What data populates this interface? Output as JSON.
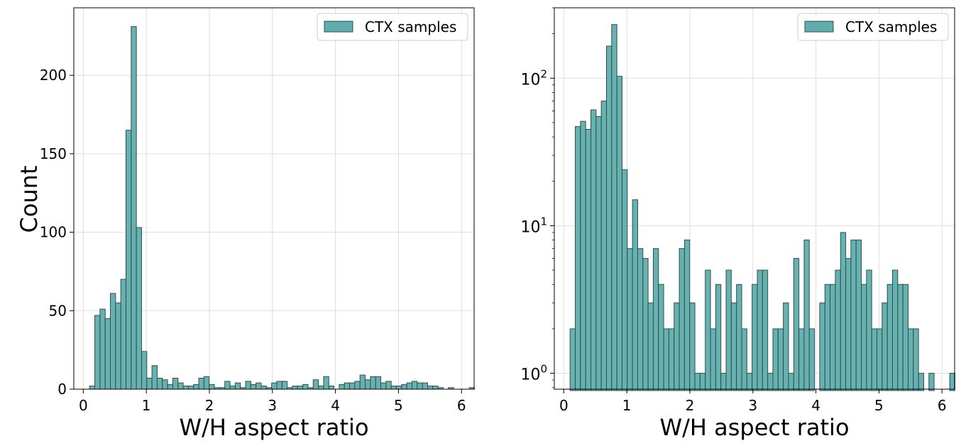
{
  "chart_data": [
    {
      "type": "bar",
      "title": "",
      "xlabel": "W/H aspect ratio",
      "ylabel": "Count",
      "yscale": "linear",
      "xlim": [
        -0.15,
        6.2
      ],
      "ylim": [
        0,
        243
      ],
      "xticks": [
        0,
        1,
        2,
        3,
        4,
        5,
        6
      ],
      "xtick_labels": [
        "0",
        "1",
        "2",
        "3",
        "4",
        "5",
        "6"
      ],
      "yticks": [
        0,
        50,
        100,
        150,
        200
      ],
      "ytick_labels": [
        "0",
        "50",
        "100",
        "150",
        "200"
      ],
      "grid": true,
      "legend": "top-right",
      "bin_start": 0.1,
      "bin_width": 0.0825,
      "series": [
        {
          "name": "CTX samples",
          "color": "#5fadad",
          "edge_color": "#2f4f4f",
          "values": [
            2,
            47,
            51,
            45,
            61,
            55,
            70,
            165,
            231,
            103,
            24,
            7,
            15,
            7,
            6,
            3,
            7,
            4,
            2,
            2,
            3,
            7,
            8,
            3,
            1,
            1,
            5,
            2,
            4,
            1,
            5,
            3,
            4,
            2,
            1,
            4,
            5,
            5,
            1,
            2,
            2,
            3,
            1,
            6,
            2,
            8,
            2,
            0,
            3,
            4,
            4,
            5,
            9,
            6,
            8,
            8,
            4,
            5,
            2,
            2,
            3,
            4,
            5,
            4,
            4,
            2,
            2,
            1,
            0,
            1,
            0,
            0,
            0,
            1
          ]
        }
      ]
    },
    {
      "type": "bar",
      "title": "",
      "xlabel": "W/H aspect ratio",
      "ylabel": "",
      "yscale": "log",
      "xlim": [
        -0.15,
        6.2
      ],
      "ylim": [
        0.78,
        300
      ],
      "xticks": [
        0,
        1,
        2,
        3,
        4,
        5,
        6
      ],
      "xtick_labels": [
        "0",
        "1",
        "2",
        "3",
        "4",
        "5",
        "6"
      ],
      "yticks": [
        1,
        10,
        100
      ],
      "ytick_bases": [
        "10",
        "10",
        "10"
      ],
      "ytick_exps": [
        "0",
        "1",
        "2"
      ],
      "grid": true,
      "legend": "top-right",
      "bin_start": 0.1,
      "bin_width": 0.0825,
      "series": [
        {
          "name": "CTX samples",
          "color": "#5fadad",
          "edge_color": "#2f4f4f",
          "values": [
            2,
            47,
            51,
            45,
            61,
            55,
            70,
            165,
            231,
            103,
            24,
            7,
            15,
            7,
            6,
            3,
            7,
            4,
            2,
            2,
            3,
            7,
            8,
            3,
            1,
            1,
            5,
            2,
            4,
            1,
            5,
            3,
            4,
            2,
            1,
            4,
            5,
            5,
            1,
            2,
            2,
            3,
            1,
            6,
            2,
            8,
            2,
            0,
            3,
            4,
            4,
            5,
            9,
            6,
            8,
            8,
            4,
            5,
            2,
            2,
            3,
            4,
            5,
            4,
            4,
            2,
            2,
            1,
            0,
            1,
            0,
            0,
            0,
            1
          ]
        }
      ]
    }
  ]
}
